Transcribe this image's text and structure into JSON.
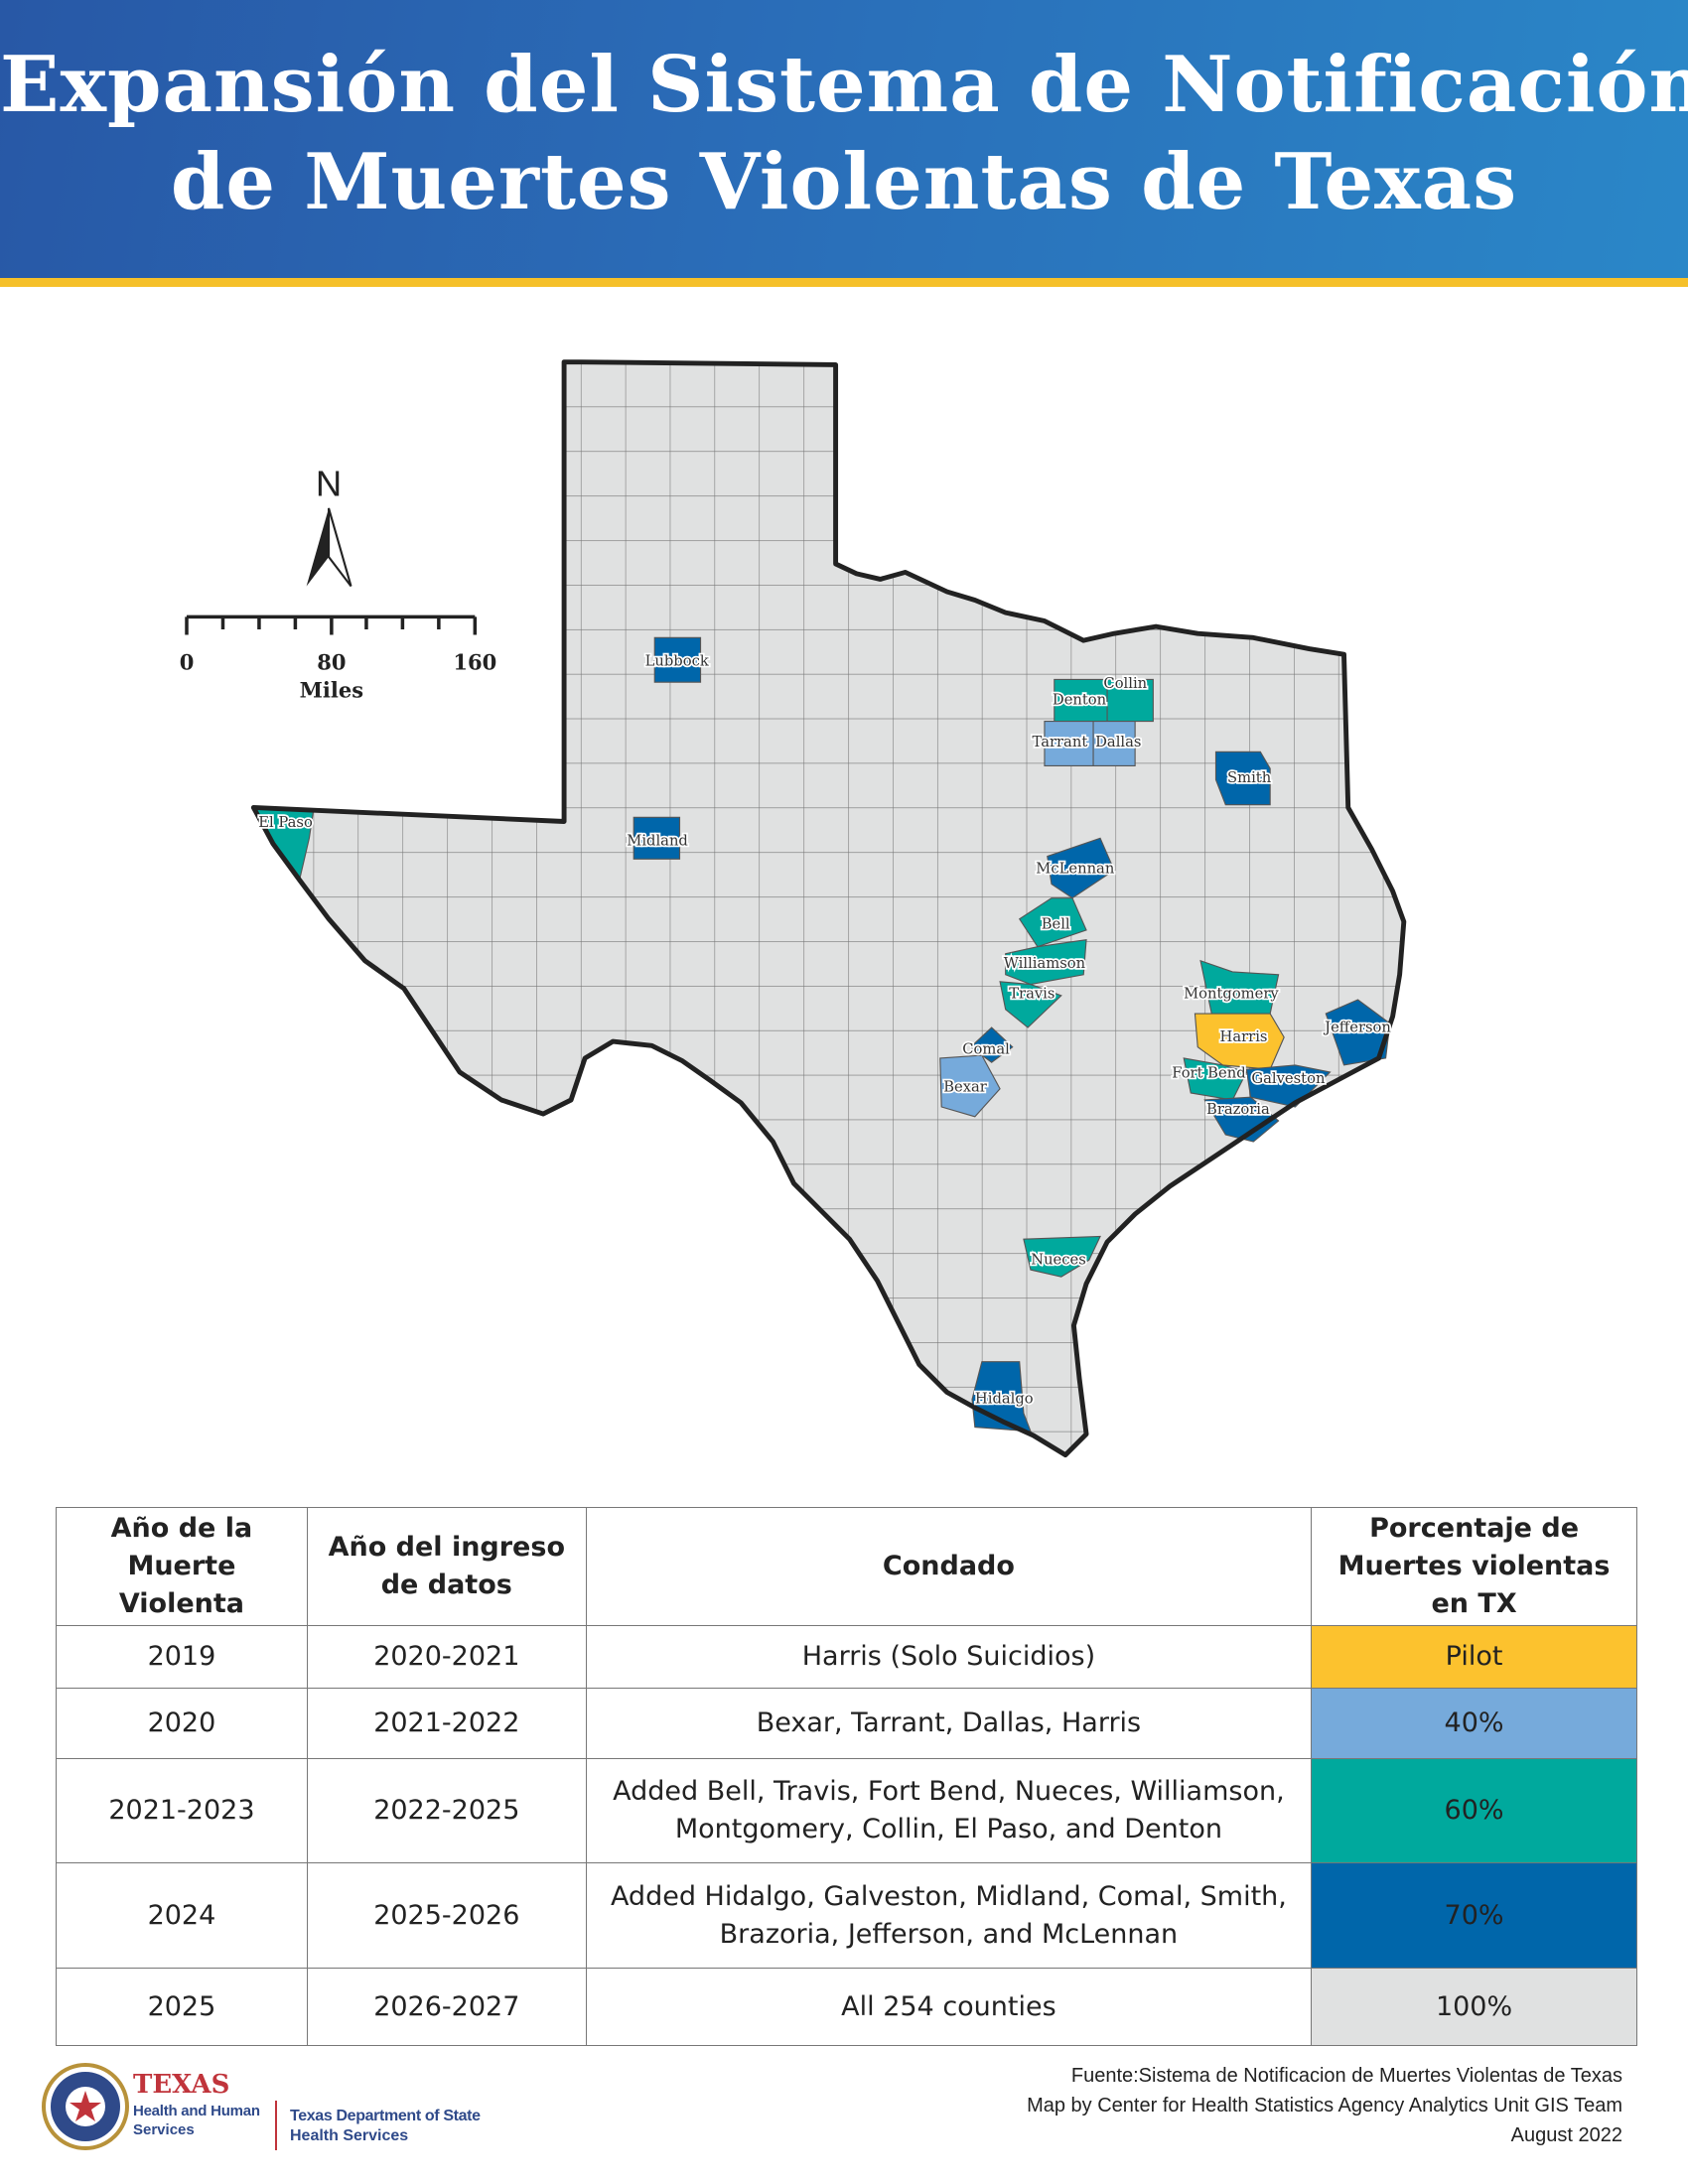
{
  "header": {
    "title_line1": "Expansión del Sistema de Notificación",
    "title_line2": "de Muertes Violentas de Texas"
  },
  "map": {
    "north_label": "N",
    "scale": {
      "ticks": [
        "0",
        "80",
        "160"
      ],
      "unit": "Miles"
    },
    "counties": {
      "lubbock": "Lubbock",
      "midland": "Midland",
      "el_paso": "El Paso",
      "denton": "Denton",
      "collin": "Collin",
      "tarrant": "Tarrant",
      "dallas": "Dallas",
      "smith": "Smith",
      "mclennan": "McLennan",
      "bell": "Bell",
      "williamson": "Williamson",
      "travis": "Travis",
      "comal": "Comal",
      "bexar": "Bexar",
      "montgomery": "Montgomery",
      "harris": "Harris",
      "fort_bend": "Fort Bend",
      "galveston": "Galveston",
      "brazoria": "Brazoria",
      "jefferson": "Jefferson",
      "nueces": "Nueces",
      "hidalgo": "Hidalgo"
    },
    "colors": {
      "pilot": "#fcc22e",
      "p40": "#76aadb",
      "p60": "#00a99d",
      "p70": "#0066aa",
      "p100": "#e0e1e1"
    }
  },
  "table": {
    "headers": [
      "Año de la Muerte Violenta",
      "Año del ingreso de datos",
      "Condado",
      "Porcentaje de Muertes violentas en TX"
    ],
    "rows": [
      [
        "2019",
        "2020-2021",
        "Harris (Solo Suicidios)",
        "Pilot"
      ],
      [
        "2020",
        "2021-2022",
        "Bexar, Tarrant, Dallas, Harris",
        "40%"
      ],
      [
        "2021-2023",
        "2022-2025",
        "Added Bell, Travis, Fort Bend, Nueces, Williamson, Montgomery, Collin, El Paso, and Denton",
        "60%"
      ],
      [
        "2024",
        "2025-2026",
        "Added Hidalgo, Galveston, Midland, Comal, Smith, Brazoria, Jefferson, and McLennan",
        "70%"
      ],
      [
        "2025",
        "2026-2027",
        "All 254 counties",
        "100%"
      ]
    ]
  },
  "footer": {
    "source": "Fuente:Sistema de Notificacion de Muertes Violentas de Texas",
    "credit": "Map by Center for Health Statistics Agency Analytics Unit GIS Team",
    "date": "August 2022",
    "logo_hhs": "TEXAS Health and Human Services",
    "logo_dshs": "Texas Department of State Health Services"
  }
}
